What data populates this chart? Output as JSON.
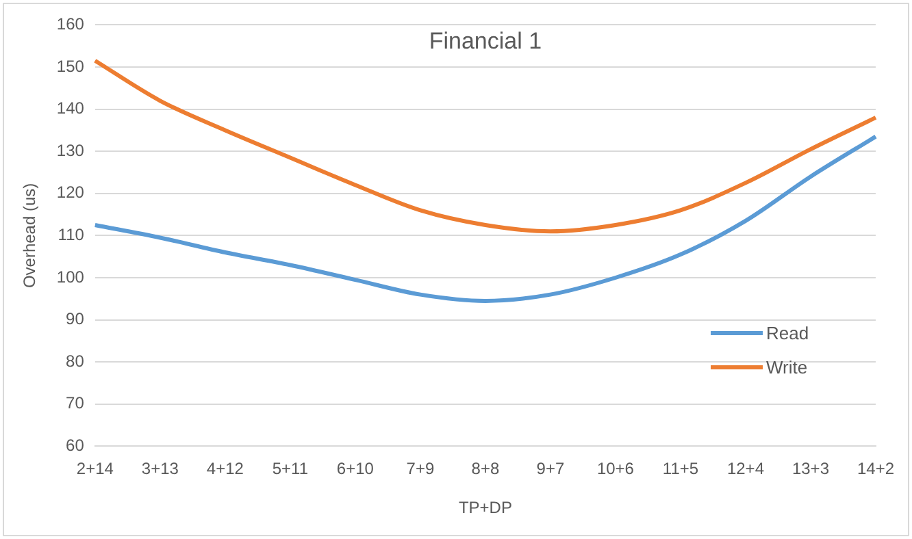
{
  "chart_data": {
    "type": "line",
    "title": "Financial 1",
    "xlabel": "TP+DP",
    "ylabel": "Overhead (us)",
    "categories": [
      "2+14",
      "3+13",
      "4+12",
      "5+11",
      "6+10",
      "7+9",
      "8+8",
      "9+7",
      "10+6",
      "11+5",
      "12+4",
      "13+3",
      "14+2"
    ],
    "series": [
      {
        "name": "Read",
        "color": "#5b9bd5",
        "values": [
          112.5,
          109.5,
          106,
          103,
          99.5,
          96,
          94.5,
          96,
          100,
          105.5,
          113.5,
          124,
          133.5
        ]
      },
      {
        "name": "Write",
        "color": "#ed7d31",
        "values": [
          151.5,
          142,
          135,
          128.5,
          122,
          116,
          112.5,
          111,
          112.5,
          116,
          122.5,
          130.5,
          138
        ]
      }
    ],
    "ylim": [
      60,
      160
    ],
    "yticks": [
      60,
      70,
      80,
      90,
      100,
      110,
      120,
      130,
      140,
      150,
      160
    ],
    "grid": "y",
    "legend": "bottom right",
    "marker": "none",
    "line_style": "solid"
  }
}
